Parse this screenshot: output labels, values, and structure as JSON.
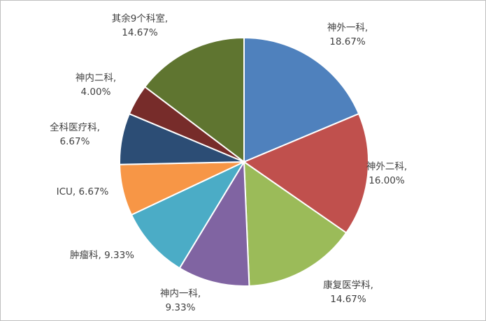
{
  "chart_data": {
    "type": "pie",
    "title": "",
    "start_angle_deg": 0,
    "direction": "clockwise",
    "slices": [
      {
        "label": "神外一科",
        "value": 18.67,
        "value_text": "18.67%",
        "color": "#4F81BD"
      },
      {
        "label": "神外二科",
        "value": 16.0,
        "value_text": "16.00%",
        "color": "#C0504D"
      },
      {
        "label": "康复医学科",
        "value": 14.67,
        "value_text": "14.67%",
        "color": "#9BBB59"
      },
      {
        "label": "神内一科",
        "value": 9.33,
        "value_text": "9.33%",
        "color": "#8064A2"
      },
      {
        "label": "肿瘤科",
        "value": 9.33,
        "value_text": "9.33%",
        "color": "#4BACC6"
      },
      {
        "label": "ICU",
        "value": 6.67,
        "value_text": "6.67%",
        "color": "#F79646"
      },
      {
        "label": "全科医疗科",
        "value": 6.67,
        "value_text": "6.67%",
        "color": "#2C4D75"
      },
      {
        "label": "神内二科",
        "value": 4.0,
        "value_text": "4.00%",
        "color": "#772C2A"
      },
      {
        "label": "其余9个科室",
        "value": 14.67,
        "value_text": "14.67%",
        "color": "#5F7530"
      }
    ],
    "legend": "none",
    "data_labels": "outside"
  }
}
